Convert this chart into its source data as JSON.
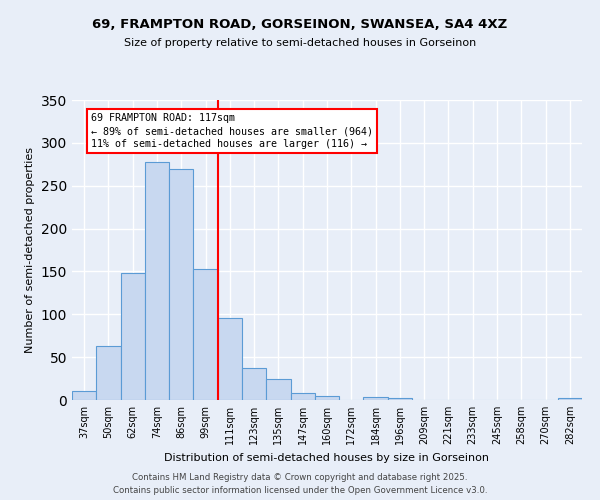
{
  "title1": "69, FRAMPTON ROAD, GORSEINON, SWANSEA, SA4 4XZ",
  "title2": "Size of property relative to semi-detached houses in Gorseinon",
  "xlabel": "Distribution of semi-detached houses by size in Gorseinon",
  "ylabel": "Number of semi-detached properties",
  "categories": [
    "37sqm",
    "50sqm",
    "62sqm",
    "74sqm",
    "86sqm",
    "99sqm",
    "111sqm",
    "123sqm",
    "135sqm",
    "147sqm",
    "160sqm",
    "172sqm",
    "184sqm",
    "196sqm",
    "209sqm",
    "221sqm",
    "233sqm",
    "245sqm",
    "258sqm",
    "270sqm",
    "282sqm"
  ],
  "values": [
    11,
    63,
    148,
    278,
    270,
    153,
    96,
    37,
    25,
    8,
    5,
    0,
    4,
    2,
    0,
    0,
    0,
    0,
    0,
    0,
    2
  ],
  "bar_color": "#c8d8f0",
  "bar_edge_color": "#5b9bd5",
  "bg_color": "#e8eef8",
  "grid_color": "#ffffff",
  "red_line_x": 6.5,
  "annotation_title": "69 FRAMPTON ROAD: 117sqm",
  "annotation_line1": "← 89% of semi-detached houses are smaller (964)",
  "annotation_line2": "11% of semi-detached houses are larger (116) →",
  "footer1": "Contains HM Land Registry data © Crown copyright and database right 2025.",
  "footer2": "Contains public sector information licensed under the Open Government Licence v3.0.",
  "ylim": [
    0,
    350
  ],
  "yticks": [
    0,
    50,
    100,
    150,
    200,
    250,
    300,
    350
  ]
}
